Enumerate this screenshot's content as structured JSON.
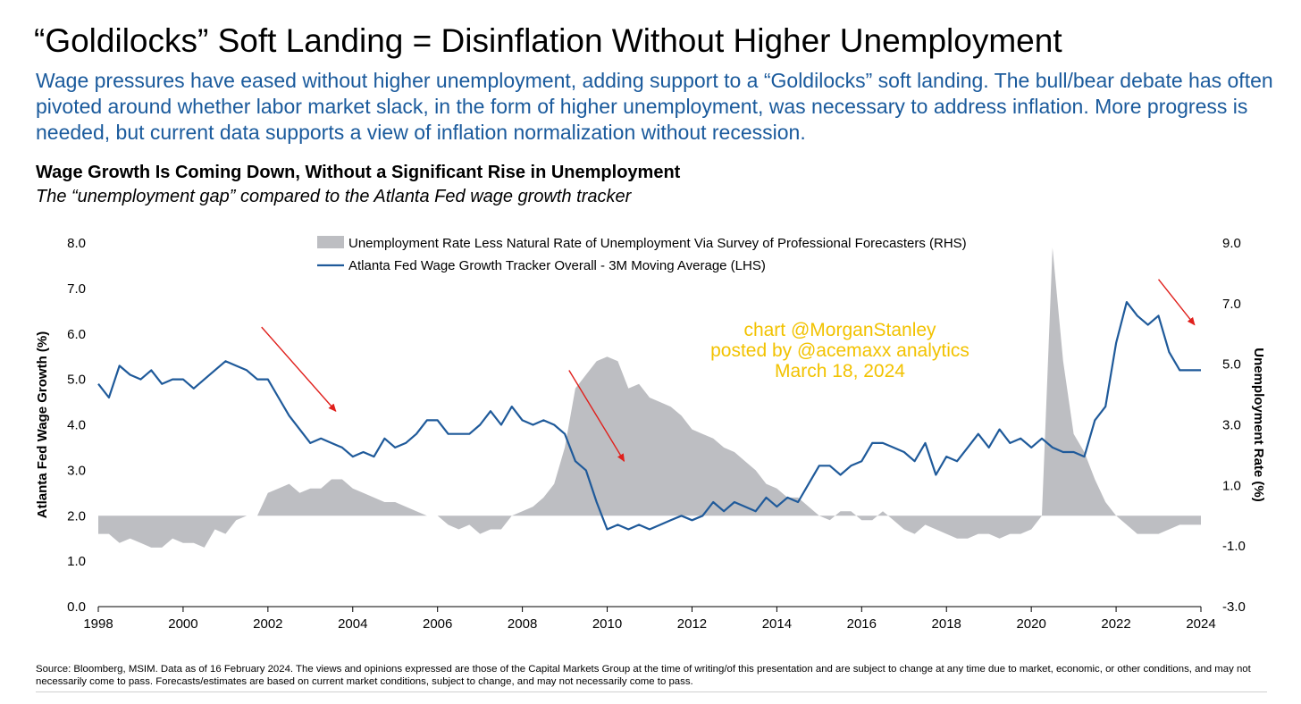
{
  "header": {
    "title": "“Goldilocks” Soft Landing = Disinflation Without Higher Unemployment",
    "subtitle": "Wage pressures have eased without higher unemployment, adding support to a “Goldilocks” soft landing. The bull/bear debate has often pivoted around whether labor market slack, in the form of higher unemployment, was necessary to address inflation. More progress is needed, but current data supports a view of inflation normalization without recession."
  },
  "chart_title": "Wage Growth Is Coming Down, Without a Significant Rise in Unemployment",
  "chart_subtitle": "The “unemployment gap” compared to the Atlanta Fed wage growth tracker",
  "source": "Source: Bloomberg, MSIM. Data as of 16 February 2024. The views and opinions expressed are those of the Capital Markets Group at the time of writing/of this presentation and are subject to change at any time due to market, economic, or other conditions, and may not necessarily come to pass. Forecasts/estimates are based on current market conditions, subject to change, and may not necessarily come to pass.",
  "watermark": [
    "chart @MorganStanley",
    "posted by @acemaxx analytics",
    "March 18, 2024"
  ],
  "colors": {
    "line": "#1f5a9a",
    "area": "#bdbec2",
    "arrow": "#e0201c",
    "watermark": "#f2c200",
    "subtitle": "#1a5a9c"
  },
  "chart_data": {
    "type": "line",
    "title": "Wage Growth Is Coming Down, Without a Significant Rise in Unemployment",
    "xlabel": "",
    "ylabel": "Atlanta Fed Wage Growth (%)",
    "y2label": "Unemployment Rate (%)",
    "xlim": [
      1998,
      2024
    ],
    "ylim": [
      0,
      8
    ],
    "y2lim": [
      -3,
      9
    ],
    "x_ticks": [
      "1998",
      "2000",
      "2002",
      "2004",
      "2006",
      "2008",
      "2010",
      "2012",
      "2014",
      "2016",
      "2018",
      "2020",
      "2022",
      "2024"
    ],
    "y_ticks": [
      "0.0",
      "1.0",
      "2.0",
      "3.0",
      "4.0",
      "5.0",
      "6.0",
      "7.0",
      "8.0"
    ],
    "y2_ticks": [
      "-3.0",
      "-1.0",
      "1.0",
      "3.0",
      "5.0",
      "7.0",
      "9.0"
    ],
    "grid": false,
    "legend_position": "top-center",
    "series": [
      {
        "name": "Unemployment Rate Less Natural Rate of Unemployment Via Survey of Professional Forecasters (RHS)",
        "type": "area",
        "axis": "right",
        "x": [
          1998.0,
          1998.25,
          1998.5,
          1998.75,
          1999.0,
          1999.25,
          1999.5,
          1999.75,
          2000.0,
          2000.25,
          2000.5,
          2000.75,
          2001.0,
          2001.25,
          2001.5,
          2001.75,
          2002.0,
          2002.25,
          2002.5,
          2002.75,
          2003.0,
          2003.25,
          2003.5,
          2003.75,
          2004.0,
          2004.25,
          2004.5,
          2004.75,
          2005.0,
          2005.25,
          2005.5,
          2005.75,
          2006.0,
          2006.25,
          2006.5,
          2006.75,
          2007.0,
          2007.25,
          2007.5,
          2007.75,
          2008.0,
          2008.25,
          2008.5,
          2008.75,
          2009.0,
          2009.25,
          2009.5,
          2009.75,
          2010.0,
          2010.25,
          2010.5,
          2010.75,
          2011.0,
          2011.25,
          2011.5,
          2011.75,
          2012.0,
          2012.25,
          2012.5,
          2012.75,
          2013.0,
          2013.25,
          2013.5,
          2013.75,
          2014.0,
          2014.25,
          2014.5,
          2014.75,
          2015.0,
          2015.25,
          2015.5,
          2015.75,
          2016.0,
          2016.25,
          2016.5,
          2016.75,
          2017.0,
          2017.25,
          2017.5,
          2017.75,
          2018.0,
          2018.25,
          2018.5,
          2018.75,
          2019.0,
          2019.25,
          2019.5,
          2019.75,
          2020.0,
          2020.25,
          2020.5,
          2020.75,
          2021.0,
          2021.25,
          2021.5,
          2021.75,
          2022.0,
          2022.25,
          2022.5,
          2022.75,
          2023.0,
          2023.25,
          2023.5,
          2023.75,
          2024.0
        ],
        "values": [
          -0.6,
          -0.6,
          -0.9,
          -0.75,
          -0.9,
          -1.05,
          -1.05,
          -0.75,
          -0.9,
          -0.9,
          -1.05,
          -0.45,
          -0.6,
          -0.15,
          0.0,
          0.0,
          0.75,
          0.9,
          1.05,
          0.75,
          0.9,
          0.9,
          1.2,
          1.2,
          0.9,
          0.75,
          0.6,
          0.45,
          0.45,
          0.3,
          0.15,
          0.0,
          0.0,
          -0.3,
          -0.45,
          -0.3,
          -0.6,
          -0.45,
          -0.45,
          0.0,
          0.15,
          0.3,
          0.6,
          1.05,
          2.25,
          4.2,
          4.65,
          5.1,
          5.25,
          5.1,
          4.2,
          4.35,
          3.9,
          3.75,
          3.6,
          3.3,
          2.85,
          2.7,
          2.55,
          2.25,
          2.1,
          1.8,
          1.5,
          1.05,
          0.9,
          0.6,
          0.6,
          0.3,
          0.0,
          -0.15,
          0.15,
          0.15,
          -0.15,
          -0.15,
          0.15,
          -0.15,
          -0.45,
          -0.6,
          -0.3,
          -0.45,
          -0.6,
          -0.75,
          -0.75,
          -0.6,
          -0.6,
          -0.75,
          -0.6,
          -0.6,
          -0.45,
          0.0,
          8.85,
          5.1,
          2.7,
          2.1,
          1.2,
          0.45,
          0.0,
          -0.3,
          -0.6,
          -0.6,
          -0.6,
          -0.45,
          -0.3,
          -0.3,
          -0.3
        ]
      },
      {
        "name": "Atlanta Fed Wage Growth Tracker Overall - 3M Moving Average (LHS)",
        "type": "line",
        "axis": "left",
        "x": [
          1998.0,
          1998.25,
          1998.5,
          1998.75,
          1999.0,
          1999.25,
          1999.5,
          1999.75,
          2000.0,
          2000.25,
          2000.5,
          2000.75,
          2001.0,
          2001.25,
          2001.5,
          2001.75,
          2002.0,
          2002.25,
          2002.5,
          2002.75,
          2003.0,
          2003.25,
          2003.5,
          2003.75,
          2004.0,
          2004.25,
          2004.5,
          2004.75,
          2005.0,
          2005.25,
          2005.5,
          2005.75,
          2006.0,
          2006.25,
          2006.5,
          2006.75,
          2007.0,
          2007.25,
          2007.5,
          2007.75,
          2008.0,
          2008.25,
          2008.5,
          2008.75,
          2009.0,
          2009.25,
          2009.5,
          2009.75,
          2010.0,
          2010.25,
          2010.5,
          2010.75,
          2011.0,
          2011.25,
          2011.5,
          2011.75,
          2012.0,
          2012.25,
          2012.5,
          2012.75,
          2013.0,
          2013.25,
          2013.5,
          2013.75,
          2014.0,
          2014.25,
          2014.5,
          2014.75,
          2015.0,
          2015.25,
          2015.5,
          2015.75,
          2016.0,
          2016.25,
          2016.5,
          2016.75,
          2017.0,
          2017.25,
          2017.5,
          2017.75,
          2018.0,
          2018.25,
          2018.5,
          2018.75,
          2019.0,
          2019.25,
          2019.5,
          2019.75,
          2020.0,
          2020.25,
          2020.5,
          2020.75,
          2021.0,
          2021.25,
          2021.5,
          2021.75,
          2022.0,
          2022.25,
          2022.5,
          2022.75,
          2023.0,
          2023.25,
          2023.5,
          2023.75,
          2024.0
        ],
        "values": [
          4.9,
          4.6,
          5.3,
          5.1,
          5.0,
          5.2,
          4.9,
          5.0,
          5.0,
          4.8,
          5.0,
          5.2,
          5.4,
          5.3,
          5.2,
          5.0,
          5.0,
          4.6,
          4.2,
          3.9,
          3.6,
          3.7,
          3.6,
          3.5,
          3.3,
          3.4,
          3.3,
          3.7,
          3.5,
          3.6,
          3.8,
          4.1,
          4.1,
          3.8,
          3.8,
          3.8,
          4.0,
          4.3,
          4.0,
          4.4,
          4.1,
          4.0,
          4.1,
          4.0,
          3.8,
          3.2,
          3.0,
          2.3,
          1.7,
          1.8,
          1.7,
          1.8,
          1.7,
          1.8,
          1.9,
          2.0,
          1.9,
          2.0,
          2.3,
          2.1,
          2.3,
          2.2,
          2.1,
          2.4,
          2.2,
          2.4,
          2.3,
          2.7,
          3.1,
          3.1,
          2.9,
          3.1,
          3.2,
          3.6,
          3.6,
          3.5,
          3.4,
          3.2,
          3.6,
          2.9,
          3.3,
          3.2,
          3.5,
          3.8,
          3.5,
          3.9,
          3.6,
          3.7,
          3.5,
          3.7,
          3.5,
          3.4,
          3.4,
          3.3,
          4.1,
          4.4,
          5.8,
          6.7,
          6.4,
          6.2,
          6.4,
          5.6,
          5.2,
          5.2,
          5.2
        ]
      }
    ],
    "annotations": [
      {
        "type": "arrow",
        "x1": 2001.85,
        "y1": 6.15,
        "x2": 2003.6,
        "y2": 4.3
      },
      {
        "type": "arrow",
        "x1": 2009.1,
        "y1": 5.2,
        "x2": 2010.4,
        "y2": 3.2
      },
      {
        "type": "arrow",
        "x1": 2023.0,
        "y1": 7.2,
        "x2": 2023.85,
        "y2": 6.2
      }
    ]
  }
}
